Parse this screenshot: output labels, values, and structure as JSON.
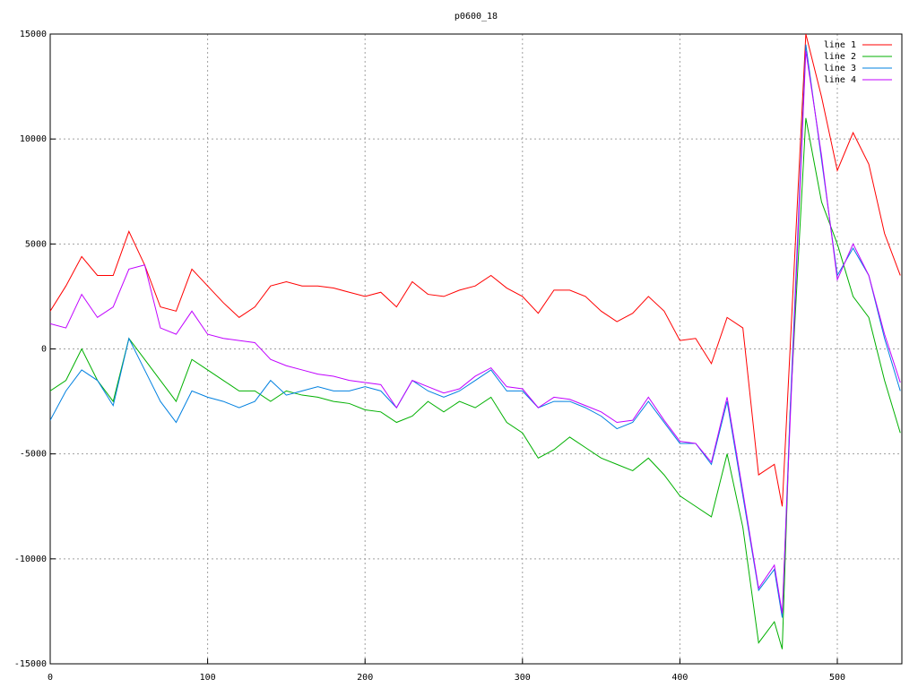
{
  "chart_data": {
    "type": "line",
    "title": "p0600_18",
    "x": [
      0,
      10,
      20,
      30,
      40,
      50,
      60,
      70,
      80,
      90,
      100,
      110,
      120,
      130,
      140,
      150,
      160,
      170,
      180,
      190,
      200,
      210,
      220,
      230,
      240,
      250,
      260,
      270,
      280,
      290,
      300,
      310,
      320,
      330,
      340,
      350,
      360,
      370,
      380,
      390,
      400,
      410,
      420,
      430,
      440,
      450,
      460,
      465,
      470,
      480,
      490,
      500,
      510,
      520,
      530,
      540
    ],
    "series": [
      {
        "name": "line 1",
        "color": "#ff0000",
        "values": [
          1800,
          3000,
          4400,
          3500,
          3500,
          5600,
          4000,
          2000,
          1800,
          3800,
          3000,
          2200,
          1500,
          2000,
          3000,
          3200,
          3000,
          3000,
          2900,
          2700,
          2500,
          2700,
          2000,
          3200,
          2600,
          2500,
          2800,
          3000,
          3500,
          2900,
          2500,
          1700,
          2800,
          2800,
          2500,
          1800,
          1300,
          1700,
          2500,
          1800,
          400,
          500,
          -700,
          1500,
          1000,
          -6000,
          -5500,
          -7500,
          0,
          15000,
          12000,
          8500,
          10300,
          8800,
          5500,
          3500
        ]
      },
      {
        "name": "line 2",
        "color": "#00b000",
        "values": [
          -2000,
          -1500,
          0,
          -1500,
          -2500,
          500,
          -500,
          -1500,
          -2500,
          -500,
          -1000,
          -1500,
          -2000,
          -2000,
          -2500,
          -2000,
          -2200,
          -2300,
          -2500,
          -2600,
          -2900,
          -3000,
          -3500,
          -3200,
          -2500,
          -3000,
          -2500,
          -2800,
          -2300,
          -3500,
          -4000,
          -5200,
          -4800,
          -4200,
          -4700,
          -5200,
          -5500,
          -5800,
          -5200,
          -6000,
          -7000,
          -7500,
          -8000,
          -5000,
          -8500,
          -14000,
          -13000,
          -14300,
          -3000,
          11000,
          7000,
          5000,
          2500,
          1500,
          -1500,
          -4000
        ]
      },
      {
        "name": "line 3",
        "color": "#0080e0",
        "values": [
          -3400,
          -2000,
          -1000,
          -1500,
          -2700,
          500,
          -1000,
          -2500,
          -3500,
          -2000,
          -2300,
          -2500,
          -2800,
          -2500,
          -1500,
          -2200,
          -2000,
          -1800,
          -2000,
          -2000,
          -1800,
          -2000,
          -2800,
          -1500,
          -2000,
          -2300,
          -2000,
          -1500,
          -1000,
          -2000,
          -2000,
          -2800,
          -2500,
          -2500,
          -2800,
          -3200,
          -3800,
          -3500,
          -2500,
          -3500,
          -4500,
          -4500,
          -5500,
          -2500,
          -7000,
          -11500,
          -10500,
          -12800,
          -3000,
          14500,
          9000,
          3500,
          4800,
          3500,
          500,
          -2000
        ]
      },
      {
        "name": "line 4",
        "color": "#c000ff",
        "values": [
          1200,
          1000,
          2600,
          1500,
          2000,
          3800,
          4000,
          1000,
          700,
          1800,
          700,
          500,
          400,
          300,
          -500,
          -800,
          -1000,
          -1200,
          -1300,
          -1500,
          -1600,
          -1700,
          -2800,
          -1500,
          -1800,
          -2100,
          -1900,
          -1300,
          -900,
          -1800,
          -1900,
          -2800,
          -2300,
          -2400,
          -2700,
          -3000,
          -3500,
          -3400,
          -2300,
          -3400,
          -4400,
          -4500,
          -5400,
          -2300,
          -6800,
          -11400,
          -10300,
          -12600,
          -3500,
          14200,
          9200,
          3300,
          5000,
          3500,
          700,
          -1600
        ]
      }
    ],
    "xlim": [
      0,
      541
    ],
    "ylim": [
      -15000,
      15000
    ],
    "xticks": [
      0,
      100,
      200,
      300,
      400,
      500
    ],
    "yticks": [
      -15000,
      -10000,
      -5000,
      0,
      5000,
      10000,
      15000
    ],
    "grid": true,
    "legend": "top-right"
  }
}
